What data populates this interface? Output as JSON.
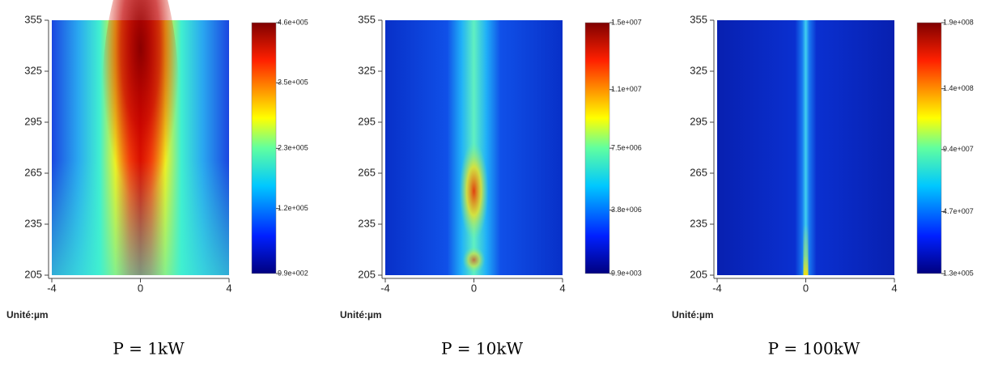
{
  "chart_data": [
    {
      "type": "heatmap",
      "x_label": "Unité:µm",
      "caption": "P = 1kW",
      "xlim": [
        -4,
        4
      ],
      "xticks": [
        -4,
        0,
        4
      ],
      "ylim": [
        205,
        355
      ],
      "yticks": [
        205,
        235,
        265,
        295,
        325,
        355
      ],
      "clim": [
        990,
        460000
      ],
      "cticks": [
        {
          "value": 990,
          "label": "9.9e+002"
        },
        {
          "value": 120000,
          "label": "1.2e+005"
        },
        {
          "value": 230000,
          "label": "2.3e+005"
        },
        {
          "value": 350000,
          "label": "3.5e+005"
        },
        {
          "value": 460000,
          "label": "4.6e+005"
        }
      ]
    },
    {
      "type": "heatmap",
      "x_label": "Unité:µm",
      "caption": "P = 10kW",
      "xlim": [
        -4,
        4
      ],
      "xticks": [
        -4,
        0,
        4
      ],
      "ylim": [
        205,
        355
      ],
      "yticks": [
        205,
        235,
        265,
        295,
        325,
        355
      ],
      "clim": [
        9900,
        15000000
      ],
      "cticks": [
        {
          "value": 9900,
          "label": "9.9e+003"
        },
        {
          "value": 3800000,
          "label": "3.8e+006"
        },
        {
          "value": 7500000,
          "label": "7.5e+006"
        },
        {
          "value": 11000000,
          "label": "1.1e+007"
        },
        {
          "value": 15000000,
          "label": "1.5e+007"
        }
      ]
    },
    {
      "type": "heatmap",
      "x_label": "Unité:µm",
      "caption": "P = 100kW",
      "xlim": [
        -4,
        4
      ],
      "xticks": [
        -4,
        0,
        4
      ],
      "ylim": [
        205,
        355
      ],
      "yticks": [
        205,
        235,
        265,
        295,
        325,
        355
      ],
      "clim": [
        130000,
        190000000
      ],
      "cticks": [
        {
          "value": 130000,
          "label": "1.3e+005"
        },
        {
          "value": 47000000,
          "label": "4.7e+007"
        },
        {
          "value": 94000000,
          "label": "9.4e+007"
        },
        {
          "value": 140000000,
          "label": "1.4e+008"
        },
        {
          "value": 190000000,
          "label": "1.9e+008"
        }
      ]
    }
  ]
}
